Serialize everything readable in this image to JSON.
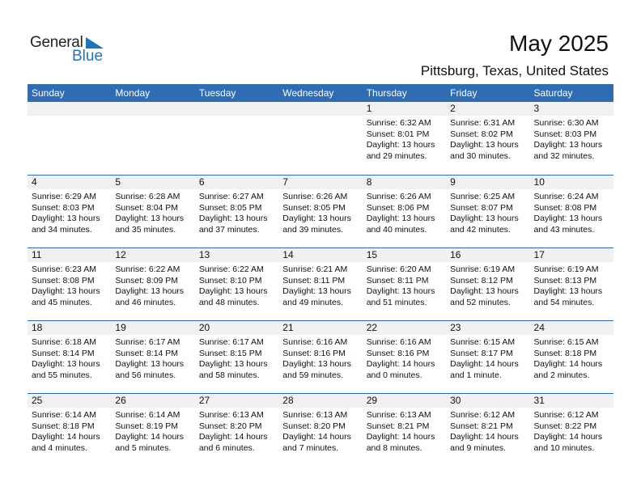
{
  "logo": {
    "general": "General",
    "blue": "Blue"
  },
  "header": {
    "title": "May 2025",
    "location": "Pittsburg, Texas, United States"
  },
  "colors": {
    "accent": "#2e6db3",
    "date_band": "#f1f1f1",
    "logo_blue": "#1f74c0"
  },
  "weekdays": [
    "Sunday",
    "Monday",
    "Tuesday",
    "Wednesday",
    "Thursday",
    "Friday",
    "Saturday"
  ],
  "weeks": [
    [
      null,
      null,
      null,
      null,
      {
        "day": "1",
        "sunrise": "Sunrise: 6:32 AM",
        "sunset": "Sunset: 8:01 PM",
        "daylight1": "Daylight: 13 hours",
        "daylight2": "and 29 minutes."
      },
      {
        "day": "2",
        "sunrise": "Sunrise: 6:31 AM",
        "sunset": "Sunset: 8:02 PM",
        "daylight1": "Daylight: 13 hours",
        "daylight2": "and 30 minutes."
      },
      {
        "day": "3",
        "sunrise": "Sunrise: 6:30 AM",
        "sunset": "Sunset: 8:03 PM",
        "daylight1": "Daylight: 13 hours",
        "daylight2": "and 32 minutes."
      }
    ],
    [
      {
        "day": "4",
        "sunrise": "Sunrise: 6:29 AM",
        "sunset": "Sunset: 8:03 PM",
        "daylight1": "Daylight: 13 hours",
        "daylight2": "and 34 minutes."
      },
      {
        "day": "5",
        "sunrise": "Sunrise: 6:28 AM",
        "sunset": "Sunset: 8:04 PM",
        "daylight1": "Daylight: 13 hours",
        "daylight2": "and 35 minutes."
      },
      {
        "day": "6",
        "sunrise": "Sunrise: 6:27 AM",
        "sunset": "Sunset: 8:05 PM",
        "daylight1": "Daylight: 13 hours",
        "daylight2": "and 37 minutes."
      },
      {
        "day": "7",
        "sunrise": "Sunrise: 6:26 AM",
        "sunset": "Sunset: 8:05 PM",
        "daylight1": "Daylight: 13 hours",
        "daylight2": "and 39 minutes."
      },
      {
        "day": "8",
        "sunrise": "Sunrise: 6:26 AM",
        "sunset": "Sunset: 8:06 PM",
        "daylight1": "Daylight: 13 hours",
        "daylight2": "and 40 minutes."
      },
      {
        "day": "9",
        "sunrise": "Sunrise: 6:25 AM",
        "sunset": "Sunset: 8:07 PM",
        "daylight1": "Daylight: 13 hours",
        "daylight2": "and 42 minutes."
      },
      {
        "day": "10",
        "sunrise": "Sunrise: 6:24 AM",
        "sunset": "Sunset: 8:08 PM",
        "daylight1": "Daylight: 13 hours",
        "daylight2": "and 43 minutes."
      }
    ],
    [
      {
        "day": "11",
        "sunrise": "Sunrise: 6:23 AM",
        "sunset": "Sunset: 8:08 PM",
        "daylight1": "Daylight: 13 hours",
        "daylight2": "and 45 minutes."
      },
      {
        "day": "12",
        "sunrise": "Sunrise: 6:22 AM",
        "sunset": "Sunset: 8:09 PM",
        "daylight1": "Daylight: 13 hours",
        "daylight2": "and 46 minutes."
      },
      {
        "day": "13",
        "sunrise": "Sunrise: 6:22 AM",
        "sunset": "Sunset: 8:10 PM",
        "daylight1": "Daylight: 13 hours",
        "daylight2": "and 48 minutes."
      },
      {
        "day": "14",
        "sunrise": "Sunrise: 6:21 AM",
        "sunset": "Sunset: 8:11 PM",
        "daylight1": "Daylight: 13 hours",
        "daylight2": "and 49 minutes."
      },
      {
        "day": "15",
        "sunrise": "Sunrise: 6:20 AM",
        "sunset": "Sunset: 8:11 PM",
        "daylight1": "Daylight: 13 hours",
        "daylight2": "and 51 minutes."
      },
      {
        "day": "16",
        "sunrise": "Sunrise: 6:19 AM",
        "sunset": "Sunset: 8:12 PM",
        "daylight1": "Daylight: 13 hours",
        "daylight2": "and 52 minutes."
      },
      {
        "day": "17",
        "sunrise": "Sunrise: 6:19 AM",
        "sunset": "Sunset: 8:13 PM",
        "daylight1": "Daylight: 13 hours",
        "daylight2": "and 54 minutes."
      }
    ],
    [
      {
        "day": "18",
        "sunrise": "Sunrise: 6:18 AM",
        "sunset": "Sunset: 8:14 PM",
        "daylight1": "Daylight: 13 hours",
        "daylight2": "and 55 minutes."
      },
      {
        "day": "19",
        "sunrise": "Sunrise: 6:17 AM",
        "sunset": "Sunset: 8:14 PM",
        "daylight1": "Daylight: 13 hours",
        "daylight2": "and 56 minutes."
      },
      {
        "day": "20",
        "sunrise": "Sunrise: 6:17 AM",
        "sunset": "Sunset: 8:15 PM",
        "daylight1": "Daylight: 13 hours",
        "daylight2": "and 58 minutes."
      },
      {
        "day": "21",
        "sunrise": "Sunrise: 6:16 AM",
        "sunset": "Sunset: 8:16 PM",
        "daylight1": "Daylight: 13 hours",
        "daylight2": "and 59 minutes."
      },
      {
        "day": "22",
        "sunrise": "Sunrise: 6:16 AM",
        "sunset": "Sunset: 8:16 PM",
        "daylight1": "Daylight: 14 hours",
        "daylight2": "and 0 minutes."
      },
      {
        "day": "23",
        "sunrise": "Sunrise: 6:15 AM",
        "sunset": "Sunset: 8:17 PM",
        "daylight1": "Daylight: 14 hours",
        "daylight2": "and 1 minute."
      },
      {
        "day": "24",
        "sunrise": "Sunrise: 6:15 AM",
        "sunset": "Sunset: 8:18 PM",
        "daylight1": "Daylight: 14 hours",
        "daylight2": "and 2 minutes."
      }
    ],
    [
      {
        "day": "25",
        "sunrise": "Sunrise: 6:14 AM",
        "sunset": "Sunset: 8:18 PM",
        "daylight1": "Daylight: 14 hours",
        "daylight2": "and 4 minutes."
      },
      {
        "day": "26",
        "sunrise": "Sunrise: 6:14 AM",
        "sunset": "Sunset: 8:19 PM",
        "daylight1": "Daylight: 14 hours",
        "daylight2": "and 5 minutes."
      },
      {
        "day": "27",
        "sunrise": "Sunrise: 6:13 AM",
        "sunset": "Sunset: 8:20 PM",
        "daylight1": "Daylight: 14 hours",
        "daylight2": "and 6 minutes."
      },
      {
        "day": "28",
        "sunrise": "Sunrise: 6:13 AM",
        "sunset": "Sunset: 8:20 PM",
        "daylight1": "Daylight: 14 hours",
        "daylight2": "and 7 minutes."
      },
      {
        "day": "29",
        "sunrise": "Sunrise: 6:13 AM",
        "sunset": "Sunset: 8:21 PM",
        "daylight1": "Daylight: 14 hours",
        "daylight2": "and 8 minutes."
      },
      {
        "day": "30",
        "sunrise": "Sunrise: 6:12 AM",
        "sunset": "Sunset: 8:21 PM",
        "daylight1": "Daylight: 14 hours",
        "daylight2": "and 9 minutes."
      },
      {
        "day": "31",
        "sunrise": "Sunrise: 6:12 AM",
        "sunset": "Sunset: 8:22 PM",
        "daylight1": "Daylight: 14 hours",
        "daylight2": "and 10 minutes."
      }
    ]
  ]
}
